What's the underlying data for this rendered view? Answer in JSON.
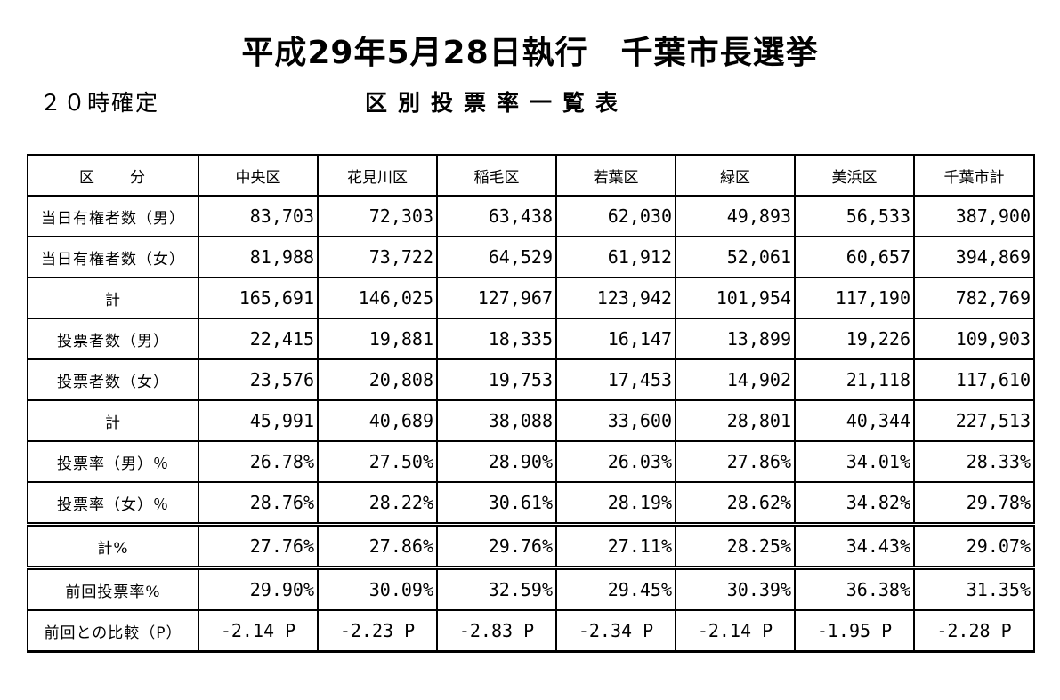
{
  "header": {
    "title": "平成29年5月28日執行　千葉市長選挙",
    "status": "２０時確定",
    "subtitle": "区別投票率一覧表"
  },
  "table": {
    "columns": [
      "区　　分",
      "中央区",
      "花見川区",
      "稲毛区",
      "若葉区",
      "緑区",
      "美浜区",
      "千葉市計"
    ],
    "rows": [
      {
        "label": "当日有権者数（男）",
        "values": [
          "83,703",
          "72,303",
          "63,438",
          "62,030",
          "49,893",
          "56,533",
          "387,900"
        ]
      },
      {
        "label": "当日有権者数（女）",
        "values": [
          "81,988",
          "73,722",
          "64,529",
          "61,912",
          "52,061",
          "60,657",
          "394,869"
        ]
      },
      {
        "label": "計",
        "values": [
          "165,691",
          "146,025",
          "127,967",
          "123,942",
          "101,954",
          "117,190",
          "782,769"
        ]
      },
      {
        "label": "投票者数（男）",
        "values": [
          "22,415",
          "19,881",
          "18,335",
          "16,147",
          "13,899",
          "19,226",
          "109,903"
        ]
      },
      {
        "label": "投票者数（女）",
        "values": [
          "23,576",
          "20,808",
          "19,753",
          "17,453",
          "14,902",
          "21,118",
          "117,610"
        ]
      },
      {
        "label": "計",
        "values": [
          "45,991",
          "40,689",
          "38,088",
          "33,600",
          "28,801",
          "40,344",
          "227,513"
        ]
      },
      {
        "label": "投票率（男）％",
        "values": [
          "26.78%",
          "27.50%",
          "28.90%",
          "26.03%",
          "27.86%",
          "34.01%",
          "28.33%"
        ]
      },
      {
        "label": "投票率（女）％",
        "values": [
          "28.76%",
          "28.22%",
          "30.61%",
          "28.19%",
          "28.62%",
          "34.82%",
          "29.78%"
        ]
      },
      {
        "label": "計%",
        "values": [
          "27.76%",
          "27.86%",
          "29.76%",
          "27.11%",
          "28.25%",
          "34.43%",
          "29.07%"
        ]
      },
      {
        "label": "前回投票率%",
        "values": [
          "29.90%",
          "30.09%",
          "32.59%",
          "29.45%",
          "30.39%",
          "36.38%",
          "31.35%"
        ]
      },
      {
        "label": "前回との比較（P）",
        "values": [
          "-2.14 P",
          "-2.23 P",
          "-2.83 P",
          "-2.34 P",
          "-2.14 P",
          "-1.95 P",
          "-2.28 P"
        ]
      }
    ]
  }
}
